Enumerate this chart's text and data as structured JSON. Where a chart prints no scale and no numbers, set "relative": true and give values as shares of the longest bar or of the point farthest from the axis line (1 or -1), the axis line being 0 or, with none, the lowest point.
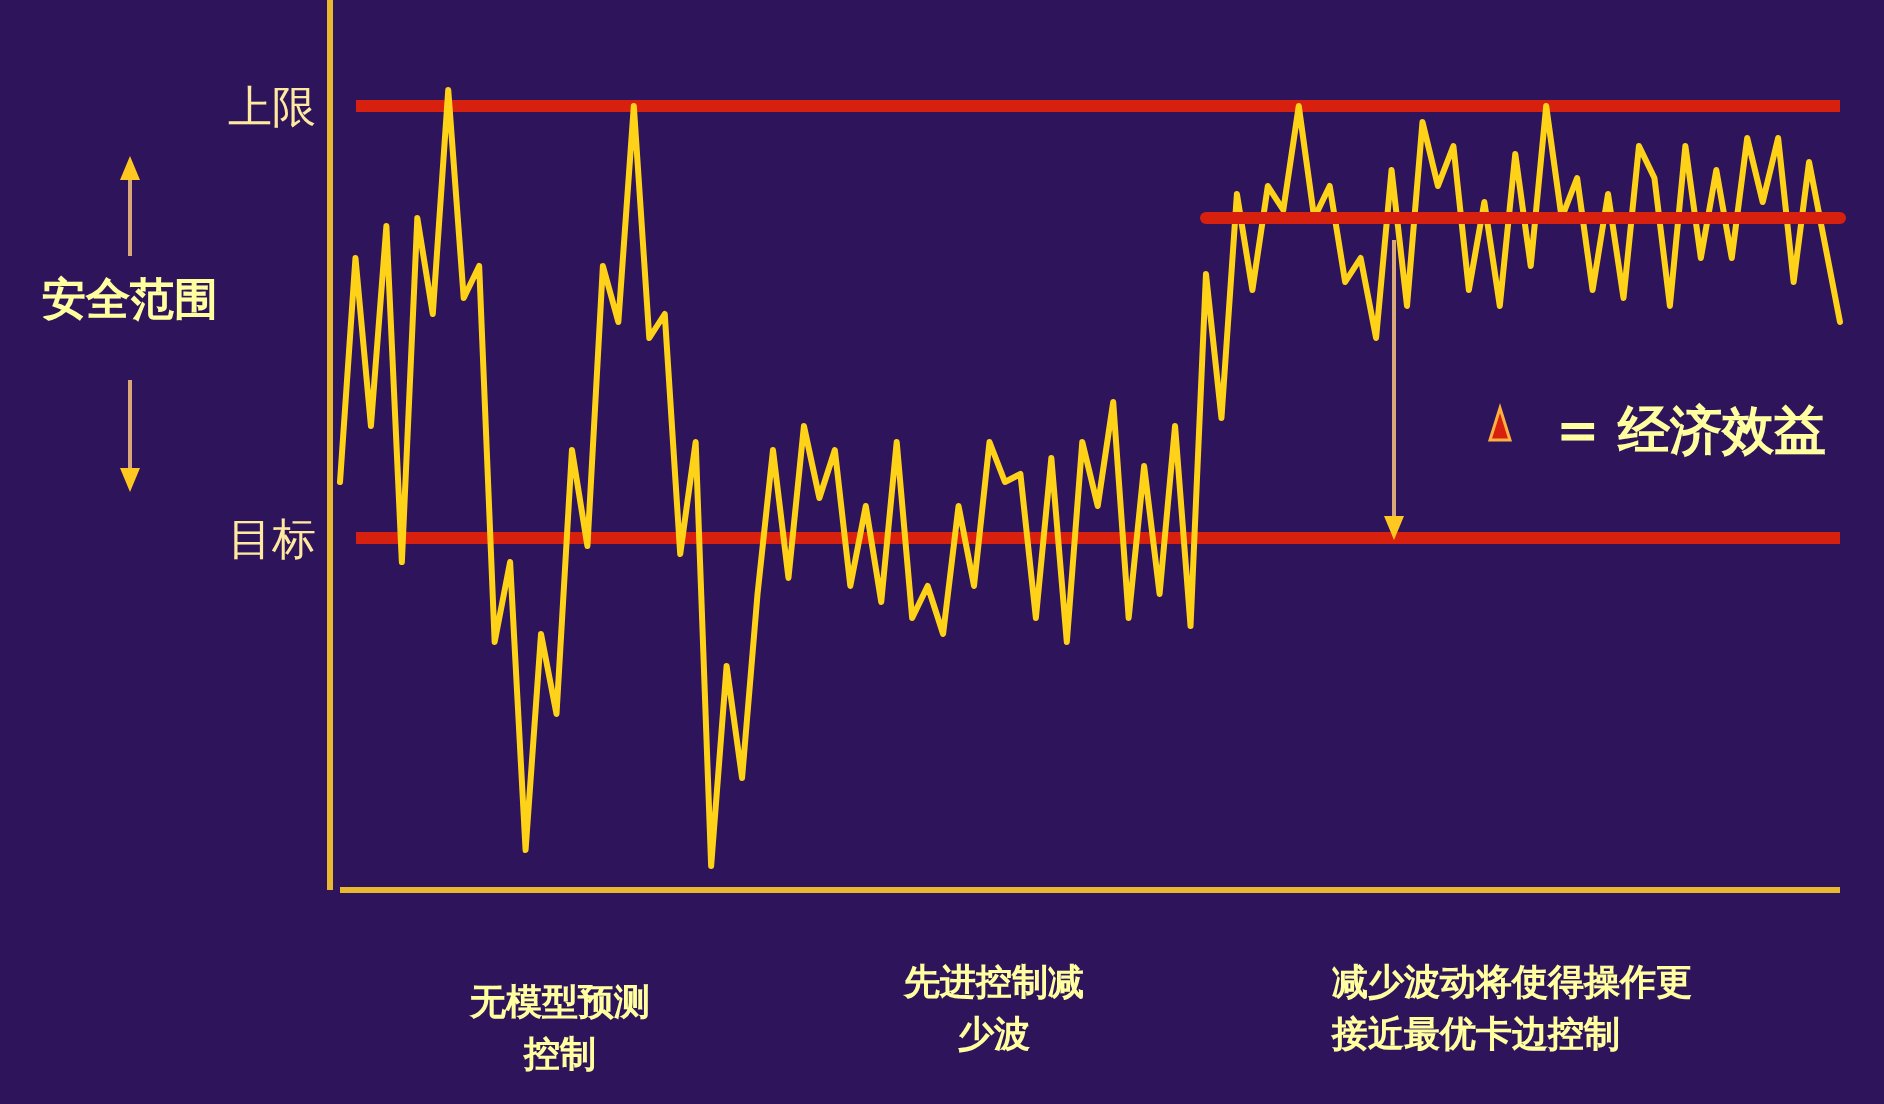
{
  "chart_data": {
    "type": "line",
    "relative": true,
    "legend": false,
    "grid": false,
    "marker": "none",
    "line_style": "solid",
    "categories": [
      null,
      null,
      null,
      null,
      null,
      null,
      null,
      null,
      null,
      null,
      null,
      null,
      null,
      null,
      null,
      null,
      null,
      null,
      null,
      null,
      null,
      null,
      null,
      null,
      null,
      null,
      null,
      null,
      null,
      null,
      null,
      null,
      null,
      null,
      null,
      null,
      null,
      null,
      null,
      null,
      null,
      null,
      null,
      null,
      null,
      null,
      null,
      null,
      null,
      null,
      null,
      null,
      null,
      null,
      null,
      null,
      null,
      null,
      null,
      null,
      null,
      null,
      null,
      null,
      null,
      null,
      null,
      null,
      null,
      null,
      null,
      null,
      null,
      null,
      null,
      null,
      null,
      null,
      null,
      null,
      null,
      null,
      null,
      null,
      null,
      null,
      null,
      null,
      null,
      null,
      null,
      null,
      null,
      null,
      null,
      null,
      null,
      null
    ],
    "series": [
      {
        "color": "#ffd21a",
        "values": [
          0.51,
          0.79,
          0.58,
          0.83,
          0.41,
          0.84,
          0.72,
          1,
          0.74,
          0.78,
          0.31,
          0.41,
          0.05,
          0.32,
          0.22,
          0.55,
          0.43,
          0.78,
          0.71,
          0.98,
          0.69,
          0.72,
          0.42,
          0.56,
          0.03,
          0.28,
          0.14,
          0.37,
          0.55,
          0.39,
          0.58,
          0.49,
          0.55,
          0.38,
          0.48,
          0.36,
          0.56,
          0.34,
          0.38,
          0.32,
          0.48,
          0.38,
          0.56,
          0.51,
          0.52,
          0.34,
          0.54,
          0.31,
          0.56,
          0.48,
          0.61,
          0.34,
          0.53,
          0.37,
          0.58,
          0.33,
          0.77,
          0.59,
          0.87,
          0.75,
          0.88,
          0.85,
          0.98,
          0.84,
          0.88,
          0.76,
          0.79,
          0.69,
          0.9,
          0.73,
          0.96,
          0.88,
          0.93,
          0.75,
          0.86,
          0.73,
          0.92,
          0.78,
          0.98,
          0.84,
          0.89,
          0.75,
          0.87,
          0.74,
          0.93,
          0.89,
          0.73,
          0.93,
          0.79,
          0.9,
          0.79,
          0.94,
          0.86,
          0.94,
          0.76,
          0.91,
          0.81,
          0.71
        ]
      },
      {
        "color": "#d8200e",
        "values": [
          null,
          null,
          null,
          null,
          null,
          null,
          null,
          null,
          null,
          null,
          null,
          null,
          null,
          null,
          null,
          null,
          null,
          null,
          null,
          null,
          null,
          null,
          null,
          null,
          null,
          null,
          null,
          null,
          null,
          null,
          null,
          null,
          null,
          null,
          null,
          null,
          null,
          null,
          null,
          null,
          null,
          null,
          null,
          null,
          null,
          null,
          null,
          null,
          null,
          null,
          null,
          null,
          null,
          null,
          null,
          null,
          0.84,
          0.84,
          0.84,
          0.84,
          0.84,
          0.84,
          0.84,
          0.84,
          0.84,
          0.84,
          0.84,
          0.84,
          0.84,
          0.84,
          0.84,
          0.84,
          0.84,
          0.84,
          0.84,
          0.84,
          0.84,
          0.84,
          0.84,
          0.84,
          0.84,
          0.84,
          0.84,
          0.84,
          0.84,
          0.84,
          0.84,
          0.84,
          0.84,
          0.84,
          0.84,
          0.84,
          0.84,
          0.84,
          0.84,
          0.84,
          0.84,
          0.84
        ]
      }
    ],
    "ref_lines": [
      {
        "axis": "y",
        "value": 0.98,
        "label": "上限",
        "color": "#d8200e"
      },
      {
        "axis": "y",
        "value": 0.44,
        "label": "目标",
        "color": "#d8200e"
      }
    ],
    "annotations": [
      "安全范围",
      "= 经济效益",
      "无模型预测控制",
      "先进控制减少波",
      "减少波动将使得操作更接近最优卡边控制"
    ]
  }
}
